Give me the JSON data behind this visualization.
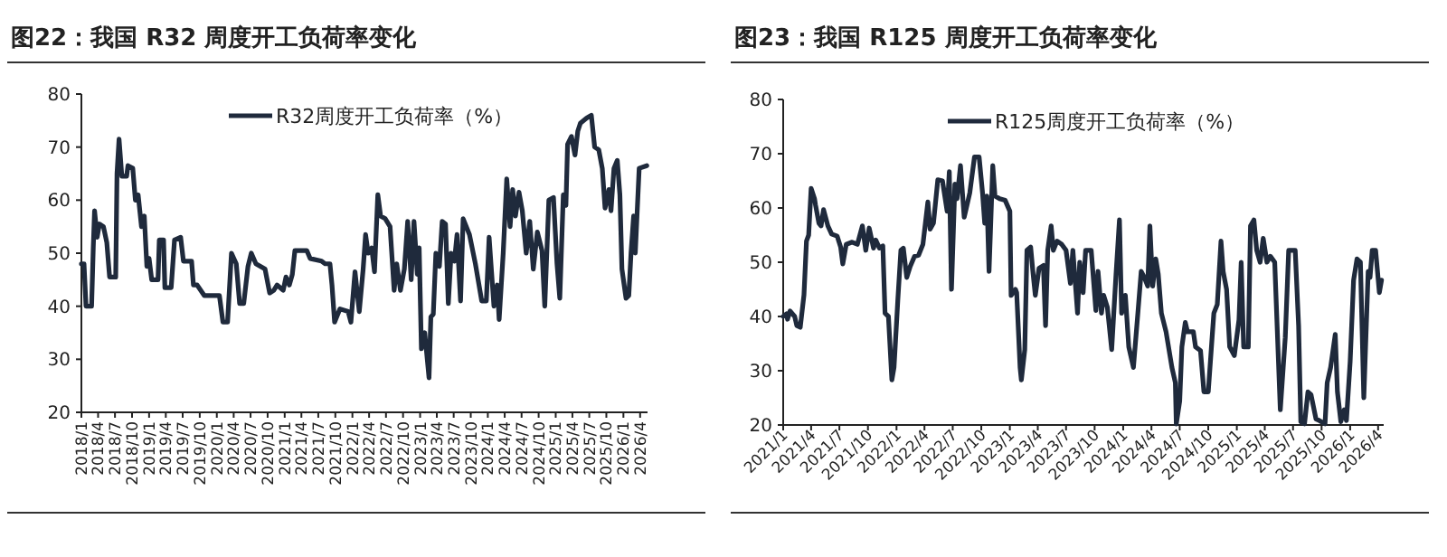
{
  "chart_data": [
    {
      "type": "line",
      "title": "图22：我国 R32 周度开工负荷率变化",
      "legend": "top",
      "series": [
        {
          "name": "R32周度开工负荷率（%）",
          "color": "#1f2a3c",
          "x": [
            "2018-01-01",
            "2018-01-15",
            "2018-01-26",
            "2018-02-25",
            "2018-03-06",
            "2018-03-13",
            "2018-03-27",
            "2018-04-08",
            "2018-04-30",
            "2018-05-18",
            "2018-06-02",
            "2018-07-05",
            "2018-07-12",
            "2018-07-23",
            "2018-08-07",
            "2018-09-02",
            "2018-09-09",
            "2018-10-05",
            "2018-10-19",
            "2018-11-03",
            "2018-11-21",
            "2018-12-06",
            "2018-12-20",
            "2019-01-01",
            "2019-01-15",
            "2019-02-18",
            "2019-02-25",
            "2019-03-20",
            "2019-03-27",
            "2019-04-30",
            "2019-05-18",
            "2019-06-20",
            "2019-07-05",
            "2019-08-18",
            "2019-08-28",
            "2019-09-17",
            "2019-10-26",
            "2020-01-15",
            "2020-02-03",
            "2020-02-28",
            "2020-03-20",
            "2020-04-15",
            "2020-05-03",
            "2020-05-25",
            "2020-06-17",
            "2020-07-05",
            "2020-07-30",
            "2020-09-17",
            "2020-10-12",
            "2020-11-03",
            "2020-11-21",
            "2020-12-24",
            "2021-01-08",
            "2021-01-26",
            "2021-02-11",
            "2021-02-25",
            "2021-04-30",
            "2021-05-18",
            "2021-07-19",
            "2021-08-07",
            "2021-09-02",
            "2021-09-13",
            "2021-09-27",
            "2021-10-26",
            "2021-12-09",
            "2021-12-24",
            "2022-01-15",
            "2022-02-07",
            "2022-02-28",
            "2022-03-13",
            "2022-03-27",
            "2022-04-15",
            "2022-04-30",
            "2022-05-18",
            "2022-06-02",
            "2022-06-27",
            "2022-07-23",
            "2022-08-14",
            "2022-08-28",
            "2022-09-17",
            "2022-10-08",
            "2022-10-26",
            "2022-11-14",
            "2022-11-29",
            "2022-12-17",
            "2022-12-27",
            "2023-01-08",
            "2023-01-26",
            "2023-02-18",
            "2023-02-28",
            "2023-03-13",
            "2023-03-27",
            "2023-04-15",
            "2023-04-30",
            "2023-05-18",
            "2023-06-02",
            "2023-06-17",
            "2023-07-05",
            "2023-07-19",
            "2023-08-07",
            "2023-08-21",
            "2023-09-24",
            "2023-10-26",
            "2023-11-29",
            "2023-12-24",
            "2024-01-08",
            "2024-02-03",
            "2024-02-21",
            "2024-03-02",
            "2024-03-24",
            "2024-04-12",
            "2024-04-30",
            "2024-05-14",
            "2024-05-29",
            "2024-06-17",
            "2024-07-05",
            "2024-07-26",
            "2024-08-14",
            "2024-09-02",
            "2024-09-24",
            "2024-10-19",
            "2024-11-03",
            "2024-11-25",
            "2024-12-20",
            "2025-01-08",
            "2025-01-23",
            "2025-02-11",
            "2025-02-25",
            "2025-03-06",
            "2025-03-27",
            "2025-04-15",
            "2025-04-30",
            "2025-05-14",
            "2025-06-17",
            "2025-07-12",
            "2025-07-30",
            "2025-08-21",
            "2025-09-09",
            "2025-09-24",
            "2025-10-15",
            "2025-10-26",
            "2025-11-11",
            "2025-11-29",
            "2025-12-13",
            "2025-12-24",
            "2026-01-15",
            "2026-01-30",
            "2026-02-11",
            "2026-02-25",
            "2026-03-06",
            "2026-03-27",
            "2026-05-07"
          ],
          "values": [
            48,
            48,
            40,
            40,
            51,
            58,
            53,
            55.5,
            55,
            52,
            45.5,
            45.5,
            65,
            71.5,
            64.5,
            64.5,
            66.5,
            66,
            60,
            61,
            55,
            57,
            47.5,
            49,
            45,
            45,
            52.5,
            52.5,
            43.5,
            43.5,
            52.5,
            53,
            48.5,
            48.5,
            44,
            44,
            42,
            42,
            37,
            37,
            50,
            48,
            40.5,
            40.5,
            47.5,
            50,
            48,
            47,
            42.5,
            43,
            44,
            43,
            45.5,
            44,
            46,
            50.5,
            50.5,
            49,
            48.5,
            48,
            48,
            44,
            37,
            39.5,
            39,
            37,
            46.5,
            39,
            47,
            53.5,
            50,
            51,
            46.5,
            61,
            57,
            56.5,
            55,
            43,
            48,
            43,
            47,
            56,
            45,
            56,
            46,
            51,
            32,
            35,
            26.5,
            38,
            38.5,
            50,
            47.5,
            56,
            55.5,
            40.5,
            50,
            48.5,
            53.5,
            41,
            56.5,
            53.5,
            48,
            41,
            41,
            53,
            40,
            44,
            37.5,
            50,
            64,
            55,
            62,
            57,
            61.5,
            58,
            50,
            56,
            47,
            54,
            50.5,
            40,
            60,
            60.5,
            48,
            41.5,
            61,
            59,
            70.5,
            72,
            68.5,
            73,
            74.5,
            75.5,
            76,
            70,
            69.5,
            66,
            58.5,
            62,
            58,
            66,
            67.5,
            61,
            47,
            41.5,
            42,
            50,
            57,
            50,
            66,
            66.5
          ]
        }
      ],
      "xlim": [
        "2018-01-01",
        "2026-05-11"
      ],
      "ylim": [
        20,
        80
      ],
      "yticks": [
        20,
        30,
        40,
        50,
        60,
        70,
        80
      ],
      "xticks": [
        {
          "value": "2018-01",
          "label": "2018/1"
        },
        {
          "value": "2018-04",
          "label": "2018/4"
        },
        {
          "value": "2018-07",
          "label": "2018/7"
        },
        {
          "value": "2018-10",
          "label": "2018/10"
        },
        {
          "value": "2019-01",
          "label": "2019/1"
        },
        {
          "value": "2019-04",
          "label": "2019/4"
        },
        {
          "value": "2019-07",
          "label": "2019/7"
        },
        {
          "value": "2019-10",
          "label": "2019/10"
        },
        {
          "value": "2020-01",
          "label": "2020/1"
        },
        {
          "value": "2020-04",
          "label": "2020/4"
        },
        {
          "value": "2020-07",
          "label": "2020/7"
        },
        {
          "value": "2020-10",
          "label": "2020/10"
        },
        {
          "value": "2021-01",
          "label": "2021/1"
        },
        {
          "value": "2021-04",
          "label": "2021/4"
        },
        {
          "value": "2021-07",
          "label": "2021/7"
        },
        {
          "value": "2021-10",
          "label": "2021/10"
        },
        {
          "value": "2022-01",
          "label": "2022/1"
        },
        {
          "value": "2022-04",
          "label": "2022/4"
        },
        {
          "value": "2022-07",
          "label": "2022/7"
        },
        {
          "value": "2022-10",
          "label": "2022/10"
        },
        {
          "value": "2023-01",
          "label": "2023/1"
        },
        {
          "value": "2023-04",
          "label": "2023/4"
        },
        {
          "value": "2023-07",
          "label": "2023/7"
        },
        {
          "value": "2023-10",
          "label": "2023/10"
        },
        {
          "value": "2024-01",
          "label": "2024/1"
        },
        {
          "value": "2024-04",
          "label": "2024/4"
        },
        {
          "value": "2024-07",
          "label": "2024/7"
        },
        {
          "value": "2024-10",
          "label": "2024/10"
        },
        {
          "value": "2025-01",
          "label": "2025/1"
        },
        {
          "value": "2025-04",
          "label": "2025/4"
        },
        {
          "value": "2025-07",
          "label": "2025/7"
        },
        {
          "value": "2025-10",
          "label": "2025/10"
        },
        {
          "value": "2026-01",
          "label": "2026/1"
        },
        {
          "value": "2026-04",
          "label": "2026/4"
        }
      ]
    },
    {
      "type": "line",
      "title": "图23：我国 R125 周度开工负荷率变化",
      "legend": "top",
      "series": [
        {
          "name": "R125周度开工负荷率（%）",
          "color": "#1f2a3c",
          "x": [
            "2021-01-01",
            "2021-01-12",
            "2021-01-15",
            "2021-01-23",
            "2021-02-07",
            "2021-02-14",
            "2021-02-25",
            "2021-03-09",
            "2021-03-17",
            "2021-03-24",
            "2021-04-01",
            "2021-04-12",
            "2021-04-15",
            "2021-04-26",
            "2021-05-03",
            "2021-05-11",
            "2021-05-25",
            "2021-06-06",
            "2021-06-24",
            "2021-07-05",
            "2021-07-12",
            "2021-07-23",
            "2021-08-11",
            "2021-08-28",
            "2021-09-13",
            "2021-09-24",
            "2021-10-05",
            "2021-10-19",
            "2021-10-26",
            "2021-11-07",
            "2021-11-18",
            "2021-11-25",
            "2021-12-06",
            "2021-12-17",
            "2021-12-24",
            "2022-01-05",
            "2022-01-15",
            "2022-01-23",
            "2022-02-03",
            "2022-02-14",
            "2022-02-28",
            "2022-03-13",
            "2022-03-27",
            "2022-04-12",
            "2022-04-19",
            "2022-04-30",
            "2022-05-14",
            "2022-05-29",
            "2022-06-13",
            "2022-06-20",
            "2022-06-27",
            "2022-07-08",
            "2022-07-15",
            "2022-07-26",
            "2022-08-07",
            "2022-08-14",
            "2022-08-25",
            "2022-09-09",
            "2022-09-24",
            "2022-10-05",
            "2022-10-12",
            "2022-10-19",
            "2022-10-26",
            "2022-11-07",
            "2022-11-14",
            "2022-11-29",
            "2022-12-17",
            "2023-01-01",
            "2023-01-05",
            "2023-01-19",
            "2023-01-23",
            "2023-02-03",
            "2023-02-07",
            "2023-02-18",
            "2023-02-25",
            "2023-03-09",
            "2023-03-17",
            "2023-03-24",
            "2023-04-05",
            "2023-04-19",
            "2023-04-26",
            "2023-05-03",
            "2023-05-14",
            "2023-05-21",
            "2023-06-02",
            "2023-06-17",
            "2023-07-01",
            "2023-07-15",
            "2023-07-23",
            "2023-08-07",
            "2023-08-14",
            "2023-08-25",
            "2023-09-02",
            "2023-09-20",
            "2023-10-05",
            "2023-10-12",
            "2023-10-23",
            "2023-10-30",
            "2023-11-11",
            "2023-11-25",
            "2023-12-09",
            "2023-12-20",
            "2023-12-27",
            "2024-01-08",
            "2024-01-19",
            "2024-02-03",
            "2024-02-18",
            "2024-02-28",
            "2024-03-09",
            "2024-03-20",
            "2024-03-27",
            "2024-04-05",
            "2024-04-15",
            "2024-04-23",
            "2024-05-03",
            "2024-05-18",
            "2024-06-06",
            "2024-06-17",
            "2024-06-20",
            "2024-07-01",
            "2024-07-08",
            "2024-07-19",
            "2024-07-26",
            "2024-08-14",
            "2024-08-21",
            "2024-09-06",
            "2024-09-17",
            "2024-10-01",
            "2024-10-12",
            "2024-10-19",
            "2024-10-30",
            "2024-11-11",
            "2024-11-18",
            "2024-11-29",
            "2024-12-09",
            "2024-12-24",
            "2025-01-08",
            "2025-01-15",
            "2025-01-23",
            "2025-02-07",
            "2025-02-14",
            "2025-02-25",
            "2025-03-06",
            "2025-03-17",
            "2025-03-27",
            "2025-04-08",
            "2025-04-19",
            "2025-05-03",
            "2025-05-21",
            "2025-06-06",
            "2025-06-17",
            "2025-06-27",
            "2025-07-08",
            "2025-07-19",
            "2025-07-26",
            "2025-08-07",
            "2025-08-18",
            "2025-08-28",
            "2025-09-13",
            "2025-09-24",
            "2025-10-12",
            "2025-10-19",
            "2025-10-30",
            "2025-11-14",
            "2025-11-21",
            "2025-12-02",
            "2025-12-13",
            "2025-12-20",
            "2026-01-01",
            "2026-01-12",
            "2026-01-23",
            "2026-02-03",
            "2026-02-14",
            "2026-02-28",
            "2026-03-06",
            "2026-03-13",
            "2026-03-24",
            "2026-04-05",
            "2026-04-12"
          ],
          "values": [
            40,
            40.5,
            39.5,
            41,
            40,
            38.3,
            38,
            44,
            53.9,
            55,
            63.6,
            61.7,
            60.6,
            57.2,
            56.7,
            59.7,
            56.7,
            55.2,
            54.8,
            52.8,
            49.7,
            53.3,
            53.7,
            53.3,
            56.7,
            52.2,
            56.3,
            52.6,
            54.1,
            52.6,
            53,
            40.6,
            40,
            28.3,
            30.6,
            42.8,
            52.2,
            52.6,
            47.2,
            49.2,
            51.1,
            51.3,
            53.3,
            61.1,
            56.1,
            57.2,
            65.2,
            65,
            59.4,
            66.7,
            45,
            64.4,
            61.7,
            67.8,
            58.3,
            60,
            62.8,
            69.4,
            69.4,
            62.8,
            57.2,
            62.2,
            48.3,
            67.8,
            62.2,
            61.7,
            61.4,
            59.4,
            43.9,
            45,
            44.4,
            30.6,
            28.3,
            33.9,
            52.2,
            52.8,
            47.8,
            43.9,
            48.9,
            49.4,
            38.3,
            52.2,
            56.7,
            52.2,
            53.9,
            53.3,
            52.2,
            46.1,
            52.2,
            40.6,
            50,
            44.4,
            52.2,
            52.2,
            41.1,
            48.3,
            40.6,
            43.9,
            41.7,
            33.9,
            47.8,
            57.8,
            40.6,
            43.9,
            34.4,
            30.6,
            41.1,
            48.3,
            47.2,
            45.6,
            56.7,
            45.6,
            50.6,
            47.8,
            40.6,
            37.2,
            30.6,
            27.8,
            20.2,
            24.4,
            34.4,
            38.9,
            37.2,
            37.2,
            34.4,
            33.7,
            26.1,
            26.1,
            35,
            40.6,
            42.2,
            53.9,
            48.3,
            45,
            34.4,
            32.8,
            39.4,
            50,
            34.4,
            34.4,
            56.7,
            57.8,
            52.2,
            50,
            54.4,
            50,
            51.1,
            50,
            22.8,
            36.1,
            52.2,
            52.2,
            52.2,
            38.3,
            20.6,
            20.2,
            26.1,
            25.6,
            21.1,
            20.8,
            20.2,
            27.8,
            30.6,
            36.7,
            26.1,
            20.6,
            22.8,
            20.8,
            31.7,
            46.7,
            50.6,
            50,
            25,
            48.3,
            47.2,
            52.2,
            52.2,
            44.4,
            46.7
          ]
        }
      ],
      "xlim": [
        "2021-01-01",
        "2026-04-19"
      ],
      "ylim": [
        20,
        80
      ],
      "yticks": [
        20,
        30,
        40,
        50,
        60,
        70,
        80
      ],
      "xticks": [
        {
          "value": "2021-01",
          "label": "2021/1"
        },
        {
          "value": "2021-04",
          "label": "2021/4"
        },
        {
          "value": "2021-07",
          "label": "2021/7"
        },
        {
          "value": "2021-10",
          "label": "2021/10"
        },
        {
          "value": "2022-01",
          "label": "2022/1"
        },
        {
          "value": "2022-04",
          "label": "2022/4"
        },
        {
          "value": "2022-07",
          "label": "2022/7"
        },
        {
          "value": "2022-10",
          "label": "2022/10"
        },
        {
          "value": "2023-01",
          "label": "2023/1"
        },
        {
          "value": "2023-04",
          "label": "2023/4"
        },
        {
          "value": "2023-07",
          "label": "2023/7"
        },
        {
          "value": "2023-10",
          "label": "2023/10"
        },
        {
          "value": "2024-01",
          "label": "2024/1"
        },
        {
          "value": "2024-04",
          "label": "2024/4"
        },
        {
          "value": "2024-07",
          "label": "2024/7"
        },
        {
          "value": "2024-10",
          "label": "2024/10"
        },
        {
          "value": "2025-01",
          "label": "2025/1"
        },
        {
          "value": "2025-04",
          "label": "2025/4"
        },
        {
          "value": "2025-07",
          "label": "2025/7"
        },
        {
          "value": "2025-10",
          "label": "2025/10"
        },
        {
          "value": "2026-01",
          "label": "2026/1"
        },
        {
          "value": "2026-04",
          "label": "2026/4"
        }
      ]
    }
  ]
}
